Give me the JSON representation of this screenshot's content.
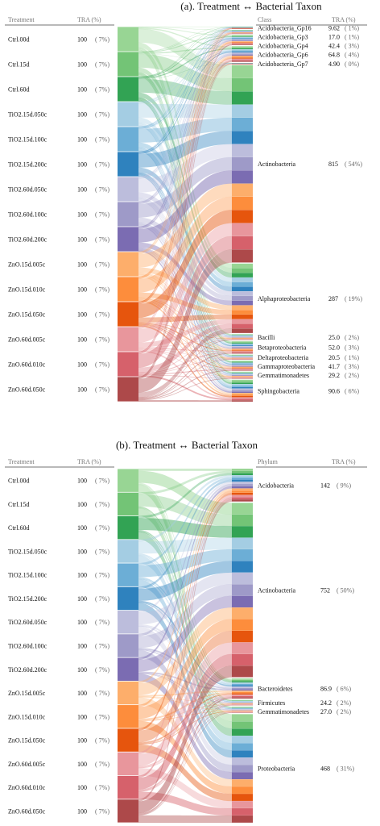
{
  "colors": {
    "treatments": [
      "#98d594",
      "#73c476",
      "#32a354",
      "#a4cde3",
      "#6caed6",
      "#2f82be",
      "#bcbddc",
      "#9e9ac8",
      "#7b6cb2",
      "#fdae6b",
      "#fd8d3c",
      "#e6550d",
      "#e8969c",
      "#d6616b",
      "#ad494a"
    ]
  },
  "panel_a": {
    "title": "(a). Treatment ↔ Bacterial Taxon",
    "left_header": "Treatment",
    "left_value_header": "TRA (%)",
    "right_header": "Class",
    "right_value_header": "TRA (%)",
    "treatments": [
      {
        "name": "Ctrl.00d",
        "value": "100",
        "pct": "( 7%)"
      },
      {
        "name": "Ctrl.15d",
        "value": "100",
        "pct": "( 7%)"
      },
      {
        "name": "Ctrl.60d",
        "value": "100",
        "pct": "( 7%)"
      },
      {
        "name": "TiO2.15d.050c",
        "value": "100",
        "pct": "( 7%)"
      },
      {
        "name": "TiO2.15d.100c",
        "value": "100",
        "pct": "( 7%)"
      },
      {
        "name": "TiO2.15d.200c",
        "value": "100",
        "pct": "( 7%)"
      },
      {
        "name": "TiO2.60d.050c",
        "value": "100",
        "pct": "( 7%)"
      },
      {
        "name": "TiO2.60d.100c",
        "value": "100",
        "pct": "( 7%)"
      },
      {
        "name": "TiO2.60d.200c",
        "value": "100",
        "pct": "( 7%)"
      },
      {
        "name": "ZnO.15d.005c",
        "value": "100",
        "pct": "( 7%)"
      },
      {
        "name": "ZnO.15d.010c",
        "value": "100",
        "pct": "( 7%)"
      },
      {
        "name": "ZnO.15d.050c",
        "value": "100",
        "pct": "( 7%)"
      },
      {
        "name": "ZnO.60d.005c",
        "value": "100",
        "pct": "( 7%)"
      },
      {
        "name": "ZnO.60d.010c",
        "value": "100",
        "pct": "( 7%)"
      },
      {
        "name": "ZnO.60d.050c",
        "value": "100",
        "pct": "( 7%)"
      }
    ],
    "taxa": [
      {
        "name": "Acidobacteria_Gp16",
        "value": "9.62",
        "pct": "( 1%)",
        "tra": 9.62
      },
      {
        "name": "Acidobacteria_Gp3",
        "value": "17.0",
        "pct": "( 1%)",
        "tra": 17.0
      },
      {
        "name": "Acidobacteria_Gp4",
        "value": "42.4",
        "pct": "( 3%)",
        "tra": 42.4
      },
      {
        "name": "Acidobacteria_Gp6",
        "value": "64.8",
        "pct": "( 4%)",
        "tra": 64.8
      },
      {
        "name": "Acidobacteria_Gp7",
        "value": "4.90",
        "pct": "( 0%)",
        "tra": 4.9
      },
      {
        "name": "Actinobacteria",
        "value": "815",
        "pct": "( 54%)",
        "tra": 815
      },
      {
        "name": "Alphaproteobacteria",
        "value": "287",
        "pct": "( 19%)",
        "tra": 287
      },
      {
        "name": "Bacilli",
        "value": "25.0",
        "pct": "( 2%)",
        "tra": 25.0
      },
      {
        "name": "Betaproteobacteria",
        "value": "52.0",
        "pct": "( 3%)",
        "tra": 52.0
      },
      {
        "name": "Deltaproteobacteria",
        "value": "20.5",
        "pct": "( 1%)",
        "tra": 20.5
      },
      {
        "name": "Gammaproteobacteria",
        "value": "41.7",
        "pct": "( 3%)",
        "tra": 41.7
      },
      {
        "name": "Gemmatimonadetes",
        "value": "29.2",
        "pct": "( 2%)",
        "tra": 29.2
      },
      {
        "name": "Sphingobacteria",
        "value": "90.6",
        "pct": "( 6%)",
        "tra": 90.6
      }
    ]
  },
  "panel_b": {
    "title": "(b). Treatment ↔ Bacterial Taxon",
    "left_header": "Treatment",
    "left_value_header": "TRA (%)",
    "right_header": "Phylum",
    "right_value_header": "TRA (%)",
    "treatments": [
      {
        "name": "Ctrl.00d",
        "value": "100",
        "pct": "( 7%)"
      },
      {
        "name": "Ctrl.15d",
        "value": "100",
        "pct": "( 7%)"
      },
      {
        "name": "Ctrl.60d",
        "value": "100",
        "pct": "( 7%)"
      },
      {
        "name": "TiO2.15d.050c",
        "value": "100",
        "pct": "( 7%)"
      },
      {
        "name": "TiO2.15d.100c",
        "value": "100",
        "pct": "( 7%)"
      },
      {
        "name": "TiO2.15d.200c",
        "value": "100",
        "pct": "( 7%)"
      },
      {
        "name": "TiO2.60d.050c",
        "value": "100",
        "pct": "( 7%)"
      },
      {
        "name": "TiO2.60d.100c",
        "value": "100",
        "pct": "( 7%)"
      },
      {
        "name": "TiO2.60d.200c",
        "value": "100",
        "pct": "( 7%)"
      },
      {
        "name": "ZnO.15d.005c",
        "value": "100",
        "pct": "( 7%)"
      },
      {
        "name": "ZnO.15d.010c",
        "value": "100",
        "pct": "( 7%)"
      },
      {
        "name": "ZnO.15d.050c",
        "value": "100",
        "pct": "( 7%)"
      },
      {
        "name": "ZnO.60d.005c",
        "value": "100",
        "pct": "( 7%)"
      },
      {
        "name": "ZnO.60d.010c",
        "value": "100",
        "pct": "( 7%)"
      },
      {
        "name": "ZnO.60d.050c",
        "value": "100",
        "pct": "( 7%)"
      }
    ],
    "taxa": [
      {
        "name": "Acidobacteria",
        "value": "142",
        "pct": "( 9%)",
        "tra": 142
      },
      {
        "name": "Actinobacteria",
        "value": "752",
        "pct": "( 50%)",
        "tra": 752
      },
      {
        "name": "Bacteroidetes",
        "value": "86.9",
        "pct": "( 6%)",
        "tra": 86.9
      },
      {
        "name": "Firmicutes",
        "value": "24.2",
        "pct": "( 2%)",
        "tra": 24.2
      },
      {
        "name": "Gemmatimonadetes",
        "value": "27.0",
        "pct": "( 2%)",
        "tra": 27.0
      },
      {
        "name": "Proteobacteria",
        "value": "468",
        "pct": "( 31%)",
        "tra": 468
      }
    ]
  }
}
